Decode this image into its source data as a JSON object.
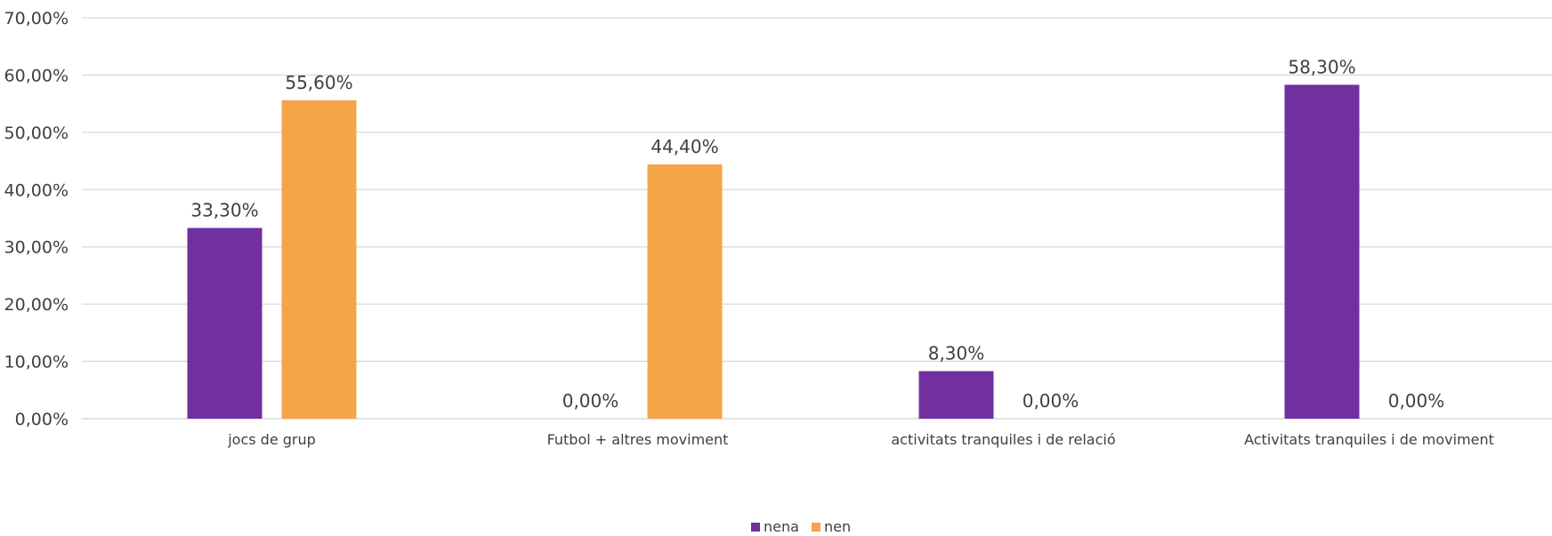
{
  "chart_data": {
    "type": "bar",
    "categories": [
      "jocs de grup",
      "Futbol + altres moviment",
      "activitats tranquiles i de relació",
      "Activitats tranquiles i de moviment"
    ],
    "series": [
      {
        "name": "nena",
        "color": "#7030a0",
        "values": [
          33.3,
          0,
          8.3,
          58.3
        ],
        "labels": [
          "33,30%",
          "0,00%",
          "8,30%",
          "58,30%"
        ]
      },
      {
        "name": "nen",
        "color": "#f4a547",
        "values": [
          55.6,
          44.4,
          0,
          0
        ],
        "labels": [
          "55,60%",
          "44,40%",
          "0,00%",
          "0,00%"
        ]
      }
    ],
    "y_ticks": [
      0,
      10,
      20,
      30,
      40,
      50,
      60,
      70
    ],
    "y_tick_labels": [
      "0,00%",
      "10,00%",
      "20,00%",
      "30,00%",
      "40,00%",
      "50,00%",
      "60,00%",
      "70,00%"
    ],
    "ylim": [
      0,
      70
    ],
    "grid": true,
    "legend_position": "bottom-center"
  }
}
